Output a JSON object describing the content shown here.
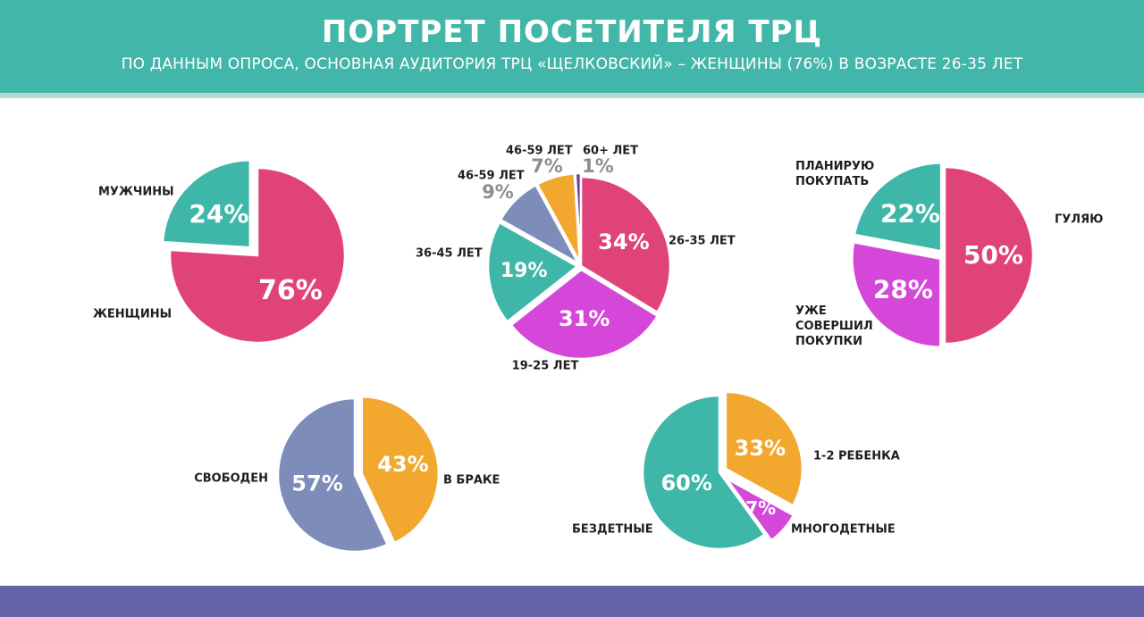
{
  "header": {
    "title": "ПОРТРЕТ ПОСЕТИТЕЛЯ ТРЦ",
    "subtitle": "ПО ДАННЫМ ОПРОСА, ОСНОВНАЯ АУДИТОРИЯ ТРЦ «ЩЕЛКОВСКИЙ» – ЖЕНЩИНЫ (76%) В ВОЗРАСТЕ 26-35 ЛЕТ"
  },
  "colors": {
    "header_bg": "#42b6a9",
    "footer_bg": "#6562a8",
    "pink": "#e0437a",
    "teal": "#3fb7a8",
    "magenta": "#d447d9",
    "slate": "#7d8cb8",
    "orange": "#f2a82e",
    "purple": "#6f3fa0"
  },
  "chart_data": [
    {
      "type": "pie",
      "name": "gender",
      "slices": [
        {
          "label": "ЖЕНЩИНЫ",
          "value": 76,
          "pct": "76%",
          "color": "#e0437a"
        },
        {
          "label": "МУЖЧИНЫ",
          "value": 24,
          "pct": "24%",
          "color": "#3fb7a8"
        }
      ]
    },
    {
      "type": "pie",
      "name": "age",
      "slices": [
        {
          "label": "26-35 ЛЕТ",
          "value": 34,
          "pct": "34%",
          "color": "#e0437a"
        },
        {
          "label": "19-25 ЛЕТ",
          "value": 31,
          "pct": "31%",
          "color": "#d447d9"
        },
        {
          "label": "36-45 ЛЕТ",
          "value": 19,
          "pct": "19%",
          "color": "#3fb7a8"
        },
        {
          "label": "46-59 ЛЕТ",
          "value": 9,
          "pct": "9%",
          "color": "#7d8cb8"
        },
        {
          "label": "46-59 ЛЕТ",
          "value": 7,
          "pct": "7%",
          "color": "#f2a82e"
        },
        {
          "label": "60+ ЛЕТ",
          "value": 1,
          "pct": "1%",
          "color": "#6f3fa0"
        }
      ]
    },
    {
      "type": "pie",
      "name": "purpose",
      "slices": [
        {
          "label": "ГУЛЯЮ",
          "value": 50,
          "pct": "50%",
          "color": "#e0437a"
        },
        {
          "label": "УЖЕ СОВЕРШИЛ ПОКУПКИ",
          "value": 28,
          "pct": "28%",
          "color": "#d447d9"
        },
        {
          "label": "ПЛАНИРУЮ ПОКУПАТЬ",
          "value": 22,
          "pct": "22%",
          "color": "#3fb7a8"
        }
      ]
    },
    {
      "type": "pie",
      "name": "marital",
      "slices": [
        {
          "label": "В БРАКЕ",
          "value": 43,
          "pct": "43%",
          "color": "#f2a82e"
        },
        {
          "label": "СВОБОДЕН",
          "value": 57,
          "pct": "57%",
          "color": "#7d8cb8"
        }
      ]
    },
    {
      "type": "pie",
      "name": "children",
      "slices": [
        {
          "label": "1-2 РЕБЕНКА",
          "value": 33,
          "pct": "33%",
          "color": "#f2a82e"
        },
        {
          "label": "МНОГОДЕТНЫЕ",
          "value": 7,
          "pct": "7%",
          "color": "#d447d9"
        },
        {
          "label": "БЕЗДЕТНЫЕ",
          "value": 60,
          "pct": "60%",
          "color": "#3fb7a8"
        }
      ]
    }
  ]
}
